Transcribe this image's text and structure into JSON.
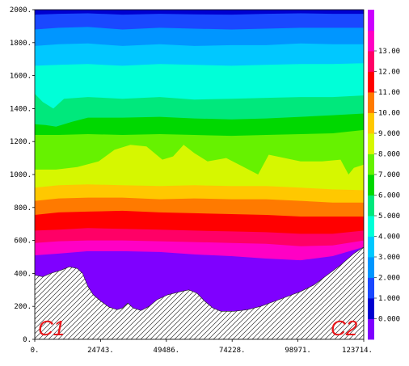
{
  "chart_data": {
    "type": "contour",
    "title": "",
    "xlabel": "",
    "ylabel": "",
    "xlim": [
      0,
      123714
    ],
    "ylim": [
      0,
      2000
    ],
    "x_ticks": [
      "0.",
      "24743.",
      "49486.",
      "74228.",
      "98971.",
      "123714."
    ],
    "y_ticks": [
      "0.",
      "200.",
      "400.",
      "600.",
      "800.",
      "1000.",
      "1200.",
      "1400.",
      "1600.",
      "1800.",
      "2000."
    ],
    "colorbar": {
      "levels": [
        -1,
        0,
        1,
        2,
        3,
        4,
        5,
        6,
        7,
        8,
        9,
        10,
        11,
        12,
        13,
        14
      ],
      "labels": [
        "0.000",
        "1.000",
        "2.000",
        "3.000",
        "4.000",
        "5.000",
        "6.000",
        "7.000",
        "8.000",
        "9.000",
        "10.00",
        "11.00",
        "12.00",
        "13.00"
      ],
      "colors": [
        "#7f00ff",
        "#0000d0",
        "#1a48ff",
        "#0096ff",
        "#00c8ff",
        "#00ffd8",
        "#00e87c",
        "#00d800",
        "#66f200",
        "#d6f700",
        "#ffc800",
        "#ff7a00",
        "#ff0000",
        "#ff0066",
        "#ff00c4",
        "#cc00ff"
      ]
    },
    "contour_lines": [
      {
        "level": 13,
        "x": [
          0,
          9000,
          20000,
          33000,
          47000,
          60000,
          74000,
          87000,
          100000,
          112000,
          123714
        ],
        "y": [
          510,
          520,
          535,
          535,
          530,
          515,
          505,
          490,
          480,
          505,
          560
        ]
      },
      {
        "level": 12,
        "x": [
          0,
          9000,
          20000,
          33000,
          47000,
          60000,
          74000,
          87000,
          100000,
          112000,
          123714
        ],
        "y": [
          585,
          595,
          600,
          600,
          595,
          590,
          585,
          580,
          565,
          570,
          600
        ]
      },
      {
        "level": 11,
        "x": [
          0,
          9000,
          20000,
          33000,
          47000,
          60000,
          74000,
          87000,
          100000,
          112000,
          123714
        ],
        "y": [
          660,
          665,
          675,
          670,
          665,
          660,
          655,
          650,
          640,
          640,
          660
        ]
      },
      {
        "level": 10,
        "x": [
          0,
          9000,
          20000,
          33000,
          47000,
          60000,
          74000,
          87000,
          100000,
          112000,
          123714
        ],
        "y": [
          755,
          770,
          775,
          780,
          770,
          765,
          760,
          755,
          745,
          745,
          745
        ]
      },
      {
        "level": 9,
        "x": [
          0,
          9000,
          20000,
          33000,
          47000,
          60000,
          74000,
          87000,
          100000,
          112000,
          123714
        ],
        "y": [
          840,
          855,
          860,
          860,
          850,
          855,
          850,
          850,
          840,
          830,
          830
        ]
      },
      {
        "level": 8,
        "x": [
          0,
          9000,
          20000,
          33000,
          47000,
          60000,
          74000,
          87000,
          100000,
          112000,
          123714
        ],
        "y": [
          920,
          935,
          940,
          935,
          930,
          935,
          930,
          930,
          920,
          910,
          905
        ]
      },
      {
        "level": 7,
        "x": [
          0,
          8000,
          16000,
          24000,
          30000,
          36000,
          42000,
          48000,
          52000,
          56000,
          60000,
          65000,
          72000,
          78000,
          84000,
          88000,
          94000,
          100000,
          108000,
          115000,
          118000,
          120000,
          123714
        ],
        "y": [
          1030,
          1030,
          1045,
          1080,
          1150,
          1180,
          1170,
          1090,
          1110,
          1180,
          1130,
          1080,
          1100,
          1050,
          1000,
          1120,
          1100,
          1080,
          1080,
          1090,
          1000,
          1040,
          1060
        ]
      },
      {
        "level": 6,
        "x": [
          0,
          9000,
          20000,
          33000,
          47000,
          60000,
          74000,
          87000,
          100000,
          112000,
          123714
        ],
        "y": [
          1240,
          1240,
          1245,
          1240,
          1245,
          1240,
          1235,
          1240,
          1245,
          1250,
          1270
        ]
      },
      {
        "level": 5,
        "x": [
          0,
          4000,
          8000,
          14000,
          20000,
          33000,
          47000,
          60000,
          74000,
          87000,
          100000,
          112000,
          123714
        ],
        "y": [
          1305,
          1300,
          1290,
          1320,
          1345,
          1345,
          1350,
          1340,
          1335,
          1340,
          1350,
          1360,
          1370
        ]
      },
      {
        "level": 4,
        "x": [
          0,
          3000,
          7000,
          11000,
          20000,
          33000,
          47000,
          60000,
          74000,
          87000,
          100000,
          112000,
          123714
        ],
        "y": [
          1490,
          1440,
          1400,
          1460,
          1470,
          1460,
          1470,
          1455,
          1460,
          1465,
          1470,
          1470,
          1480
        ]
      },
      {
        "level": 3,
        "x": [
          0,
          9000,
          20000,
          33000,
          47000,
          60000,
          74000,
          87000,
          100000,
          112000,
          123714
        ],
        "y": [
          1660,
          1665,
          1670,
          1660,
          1670,
          1665,
          1660,
          1665,
          1670,
          1670,
          1675
        ]
      },
      {
        "level": 2,
        "x": [
          0,
          9000,
          20000,
          33000,
          47000,
          60000,
          74000,
          87000,
          100000,
          112000,
          123714
        ],
        "y": [
          1780,
          1790,
          1795,
          1780,
          1790,
          1780,
          1785,
          1785,
          1795,
          1790,
          1790
        ]
      },
      {
        "level": 1,
        "x": [
          0,
          9000,
          20000,
          33000,
          47000,
          60000,
          74000,
          87000,
          100000,
          112000,
          123714
        ],
        "y": [
          1880,
          1890,
          1895,
          1880,
          1890,
          1885,
          1880,
          1885,
          1890,
          1890,
          1890
        ]
      },
      {
        "level": 0,
        "x": [
          0,
          9000,
          20000,
          33000,
          47000,
          60000,
          74000,
          87000,
          100000,
          112000,
          123714
        ],
        "y": [
          1970,
          1975,
          1978,
          1970,
          1975,
          1972,
          1970,
          1975,
          1978,
          1975,
          1975
        ]
      }
    ],
    "terrain": {
      "x": [
        0,
        3000,
        6000,
        10000,
        13000,
        16000,
        18000,
        20000,
        22000,
        25000,
        28000,
        31000,
        33000,
        35000,
        37000,
        40000,
        43000,
        46000,
        50000,
        55000,
        58000,
        61000,
        64000,
        67000,
        70000,
        75000,
        80000,
        85000,
        90000,
        95000,
        100000,
        105000,
        110000,
        115000,
        120000,
        123714
      ],
      "y": [
        390,
        380,
        400,
        420,
        440,
        430,
        400,
        320,
        270,
        230,
        195,
        180,
        190,
        220,
        190,
        175,
        200,
        240,
        270,
        290,
        300,
        280,
        230,
        190,
        170,
        170,
        180,
        200,
        230,
        260,
        290,
        330,
        390,
        450,
        520,
        560
      ]
    },
    "annotations": [
      "C1",
      "C2"
    ]
  }
}
